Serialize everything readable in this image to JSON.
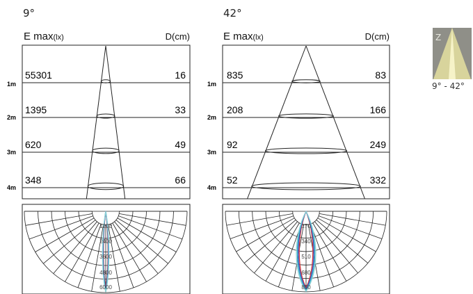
{
  "panels": [
    {
      "id": "p9",
      "angle_label": "9°",
      "emax_label": "E max",
      "emax_unit": "(lx)",
      "d_label": "D(cm)",
      "rows": [
        {
          "dist": "1m",
          "emax": "55301",
          "d": "16"
        },
        {
          "dist": "2m",
          "emax": "1395",
          "d": "33"
        },
        {
          "dist": "3m",
          "emax": "620",
          "d": "49"
        },
        {
          "dist": "4m",
          "emax": "348",
          "d": "66"
        }
      ],
      "polar_labels": [
        "1200",
        "2400",
        "3600",
        "4800",
        "6000"
      ],
      "beam_half_angle_deg": 4.5
    },
    {
      "id": "p42",
      "angle_label": "42°",
      "emax_label": "E max",
      "emax_unit": "(lx)",
      "d_label": "D(cm)",
      "rows": [
        {
          "dist": "1m",
          "emax": "835",
          "d": "83"
        },
        {
          "dist": "2m",
          "emax": "208",
          "d": "166"
        },
        {
          "dist": "3m",
          "emax": "92",
          "d": "249"
        },
        {
          "dist": "4m",
          "emax": "52",
          "d": "332"
        }
      ],
      "polar_labels": [
        "170",
        "340",
        "510",
        "680",
        "850"
      ],
      "beam_half_angle_deg": 21
    }
  ],
  "thumbnail": {
    "corner_letter": "Z",
    "caption": "9° - 42°",
    "colors": {
      "bg": "#8f8f88",
      "beam_outer": "#d8d49c",
      "beam_inner": "#f6f3c8"
    }
  },
  "curve_colors": [
    "#d23a3a",
    "#3a4fc8",
    "#39b6c8",
    "#8fd0d6"
  ]
}
